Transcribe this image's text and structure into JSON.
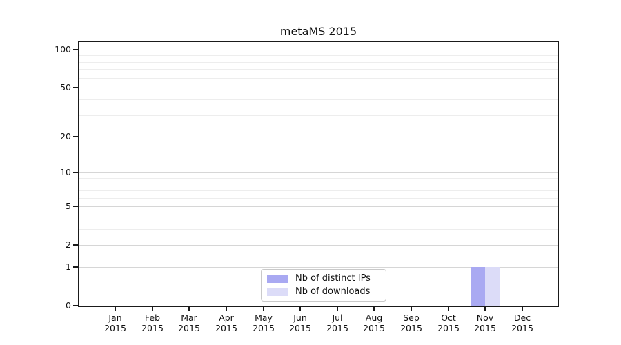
{
  "figure": {
    "background": "#ffffff",
    "text_color": "#111111",
    "axis_color": "#1a1a1a"
  },
  "chart_data": {
    "type": "bar",
    "title": "metaMS 2015",
    "categories": [
      {
        "label": "Jan",
        "sublabel": "2015"
      },
      {
        "label": "Feb",
        "sublabel": "2015"
      },
      {
        "label": "Mar",
        "sublabel": "2015"
      },
      {
        "label": "Apr",
        "sublabel": "2015"
      },
      {
        "label": "May",
        "sublabel": "2015"
      },
      {
        "label": "Jun",
        "sublabel": "2015"
      },
      {
        "label": "Jul",
        "sublabel": "2015"
      },
      {
        "label": "Aug",
        "sublabel": "2015"
      },
      {
        "label": "Sep",
        "sublabel": "2015"
      },
      {
        "label": "Oct",
        "sublabel": "2015"
      },
      {
        "label": "Nov",
        "sublabel": "2015"
      },
      {
        "label": "Dec",
        "sublabel": "2015"
      }
    ],
    "series": [
      {
        "name": "Nb of distinct IPs",
        "color": "#a9a9f2",
        "values": [
          0,
          0,
          0,
          0,
          0,
          0,
          0,
          0,
          0,
          0,
          1,
          0
        ]
      },
      {
        "name": "Nb of downloads",
        "color": "#dcdcf8",
        "values": [
          0,
          0,
          0,
          0,
          0,
          0,
          0,
          0,
          0,
          0,
          1,
          0
        ]
      }
    ],
    "y_axis": {
      "scale": "log1p",
      "ticks": [
        0,
        1,
        2,
        5,
        10,
        20,
        50,
        100
      ],
      "minor_ticks": [
        3,
        4,
        6,
        7,
        8,
        9,
        30,
        40,
        60,
        70,
        80,
        90
      ],
      "max": 100
    },
    "grid": {
      "major_color": "#d6d6d6",
      "minor_color": "#ededed"
    },
    "legend": {
      "position": "bottom-center"
    }
  }
}
